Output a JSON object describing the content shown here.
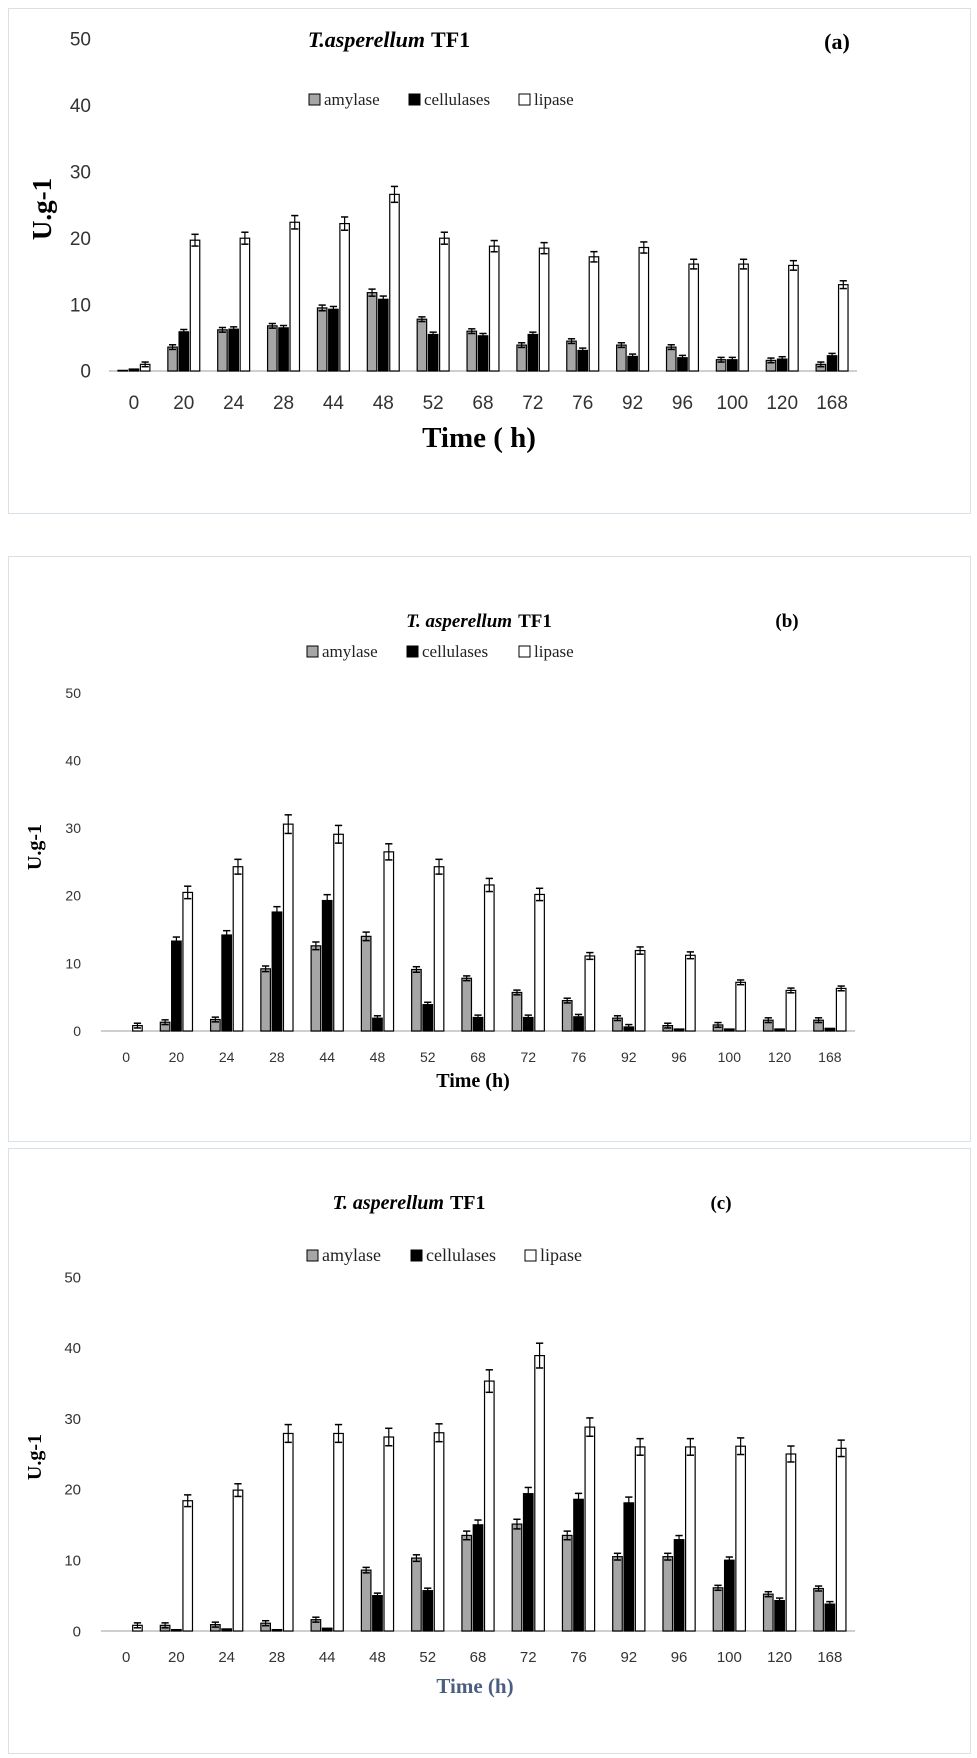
{
  "chart_data": [
    {
      "type": "bar",
      "title_species": "T.asperellum",
      "title_strain": "TF1",
      "panel_label": "(a)",
      "xlabel": "Time ( h)",
      "ylabel": "U.g-1",
      "ylim": [
        0,
        50
      ],
      "yticks": [
        "0",
        "10",
        "20",
        "30",
        "40",
        "50"
      ],
      "categories": [
        "0",
        "20",
        "24",
        "28",
        "44",
        "48",
        "52",
        "68",
        "72",
        "76",
        "92",
        "96",
        "100",
        "120",
        "168"
      ],
      "series": [
        {
          "name": "amylase",
          "color": "#a6a6a6",
          "values": [
            0.1,
            3.6,
            6.2,
            6.8,
            9.5,
            11.8,
            7.8,
            6.0,
            3.9,
            4.5,
            3.9,
            3.6,
            1.7,
            1.6,
            1.0
          ]
        },
        {
          "name": "cellulases",
          "color": "#000000",
          "values": [
            0.3,
            5.9,
            6.3,
            6.5,
            9.3,
            10.8,
            5.5,
            5.3,
            5.5,
            3.1,
            2.2,
            2.0,
            1.7,
            1.8,
            2.3
          ]
        },
        {
          "name": "lipase",
          "color": "#ffffff",
          "values": [
            1.0,
            19.7,
            20.0,
            22.4,
            22.2,
            26.6,
            20.0,
            18.8,
            18.5,
            17.2,
            18.6,
            16.1,
            16.1,
            15.9,
            13.0
          ]
        }
      ],
      "legend_position": "top-center",
      "grid": false
    },
    {
      "type": "bar",
      "title_species": "T. asperellum",
      "title_strain": "TF1",
      "panel_label": "(b)",
      "xlabel": "Time (h)",
      "ylabel": "U.g-1",
      "ylim": [
        0,
        50
      ],
      "yticks": [
        "0",
        "10",
        "20",
        "30",
        "40",
        "50"
      ],
      "categories": [
        "0",
        "20",
        "24",
        "28",
        "44",
        "48",
        "52",
        "68",
        "72",
        "76",
        "92",
        "96",
        "100",
        "120",
        "168"
      ],
      "series": [
        {
          "name": "amylase",
          "color": "#a6a6a6",
          "values": [
            0.0,
            1.3,
            1.7,
            9.2,
            12.6,
            14.0,
            9.1,
            7.8,
            5.7,
            4.5,
            1.9,
            0.8,
            0.9,
            1.6,
            1.6
          ]
        },
        {
          "name": "cellulases",
          "color": "#000000",
          "values": [
            0.0,
            13.3,
            14.2,
            17.6,
            19.3,
            1.9,
            3.9,
            2.0,
            2.0,
            2.1,
            0.6,
            0.3,
            0.3,
            0.3,
            0.4
          ]
        },
        {
          "name": "lipase",
          "color": "#ffffff",
          "values": [
            0.8,
            20.5,
            24.3,
            30.6,
            29.1,
            26.5,
            24.3,
            21.6,
            20.2,
            11.1,
            11.9,
            11.2,
            7.2,
            6.0,
            6.3
          ]
        }
      ],
      "legend_position": "top-center",
      "grid": false
    },
    {
      "type": "bar",
      "title_species": "T. asperellum",
      "title_strain": "TF1",
      "panel_label": "(c)",
      "xlabel": "Time (h)",
      "ylabel": "U.g-1",
      "ylim": [
        0,
        50
      ],
      "yticks": [
        "0",
        "10",
        "20",
        "30",
        "40",
        "50"
      ],
      "categories": [
        "0",
        "20",
        "24",
        "28",
        "44",
        "48",
        "52",
        "68",
        "72",
        "76",
        "92",
        "96",
        "100",
        "120",
        "168"
      ],
      "series": [
        {
          "name": "amylase",
          "color": "#a6a6a6",
          "values": [
            0.0,
            0.8,
            0.9,
            1.1,
            1.6,
            8.6,
            10.3,
            13.5,
            15.1,
            13.5,
            10.5,
            10.5,
            6.1,
            5.2,
            6.0
          ]
        },
        {
          "name": "cellulases",
          "color": "#000000",
          "values": [
            0.0,
            0.2,
            0.3,
            0.2,
            0.4,
            5.0,
            5.7,
            15.0,
            19.4,
            18.6,
            18.1,
            12.9,
            10.0,
            4.3,
            3.8
          ]
        },
        {
          "name": "lipase",
          "color": "#ffffff",
          "values": [
            0.8,
            18.4,
            19.9,
            27.9,
            27.9,
            27.4,
            28.0,
            35.3,
            38.9,
            28.8,
            26.0,
            26.0,
            26.1,
            25.0,
            25.8
          ]
        }
      ],
      "legend_position": "top-center",
      "grid": false
    }
  ]
}
